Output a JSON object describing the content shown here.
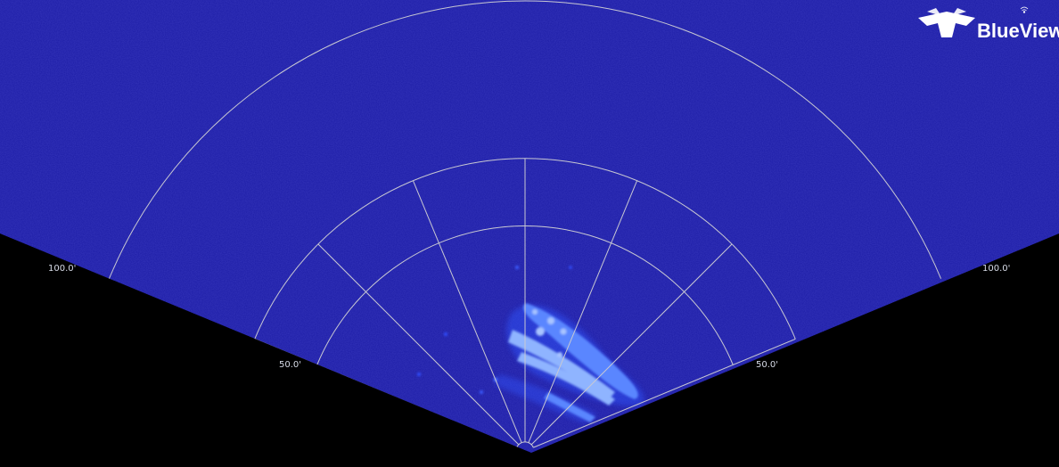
{
  "brand": {
    "name": "BlueView",
    "logo_icon": "teledyne-t-icon",
    "signal_icon": "wifi-icon"
  },
  "sonar": {
    "range_rings": [
      {
        "range": 50,
        "label": "50.0'"
      },
      {
        "range": 100,
        "label": "100.0'"
      }
    ],
    "colors": {
      "water": "#1c1ca5",
      "outside": "#000000",
      "grid": "#c8c8d2",
      "echo_strong": "#8fb4ff",
      "echo_weak": "#2f56ff"
    }
  }
}
